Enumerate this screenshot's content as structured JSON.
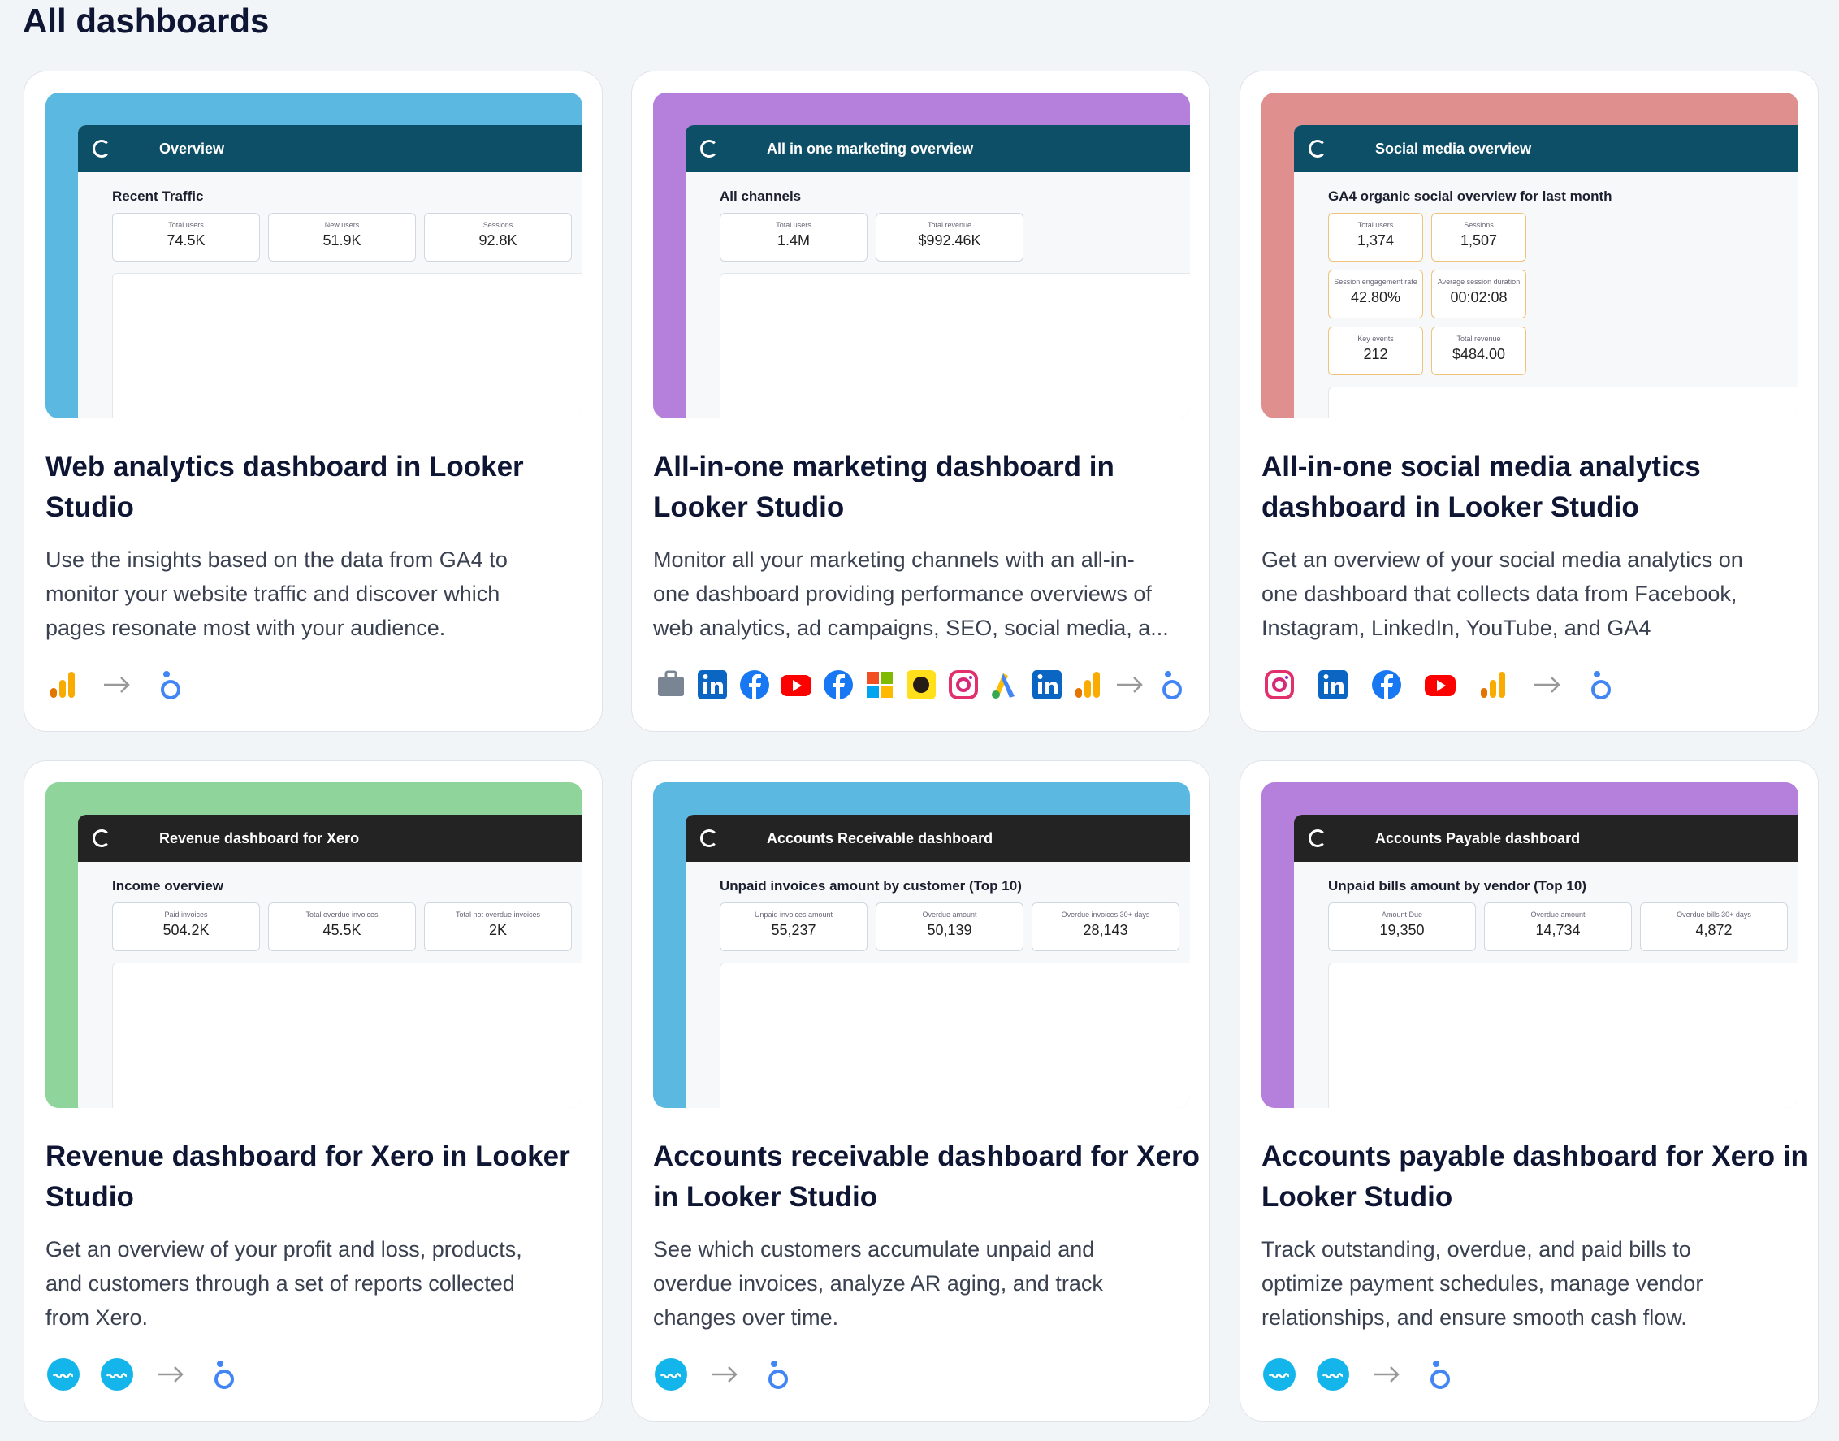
{
  "header": {
    "title": "All dashboards"
  },
  "cards": [
    {
      "title": "Web analytics dashboard in Looker Studio",
      "description": [
        "Use the insights based on the data from GA4 to",
        "monitor your website traffic and discover which",
        "pages resonate most with your audience."
      ],
      "preview": {
        "title": "Overview",
        "heading": "Recent Traffic",
        "kpis": [
          {
            "label": "Total users",
            "value": "74.5K"
          },
          {
            "label": "New users",
            "value": "51.9K"
          },
          {
            "label": "Sessions",
            "value": "92.8K"
          }
        ]
      }
    },
    {
      "title": "All-in-one marketing dashboard in Looker Studio",
      "description": [
        "Monitor all your marketing channels with an all-in-",
        "one dashboard providing performance overviews of",
        "web analytics, ad campaigns, SEO, social media, a..."
      ],
      "preview": {
        "title": "All in one marketing overview",
        "heading": "All channels",
        "kpis": [
          {
            "label": "Total users",
            "value": "1.4M"
          },
          {
            "label": "Total revenue",
            "value": "$992.46K"
          }
        ]
      }
    },
    {
      "title": "All-in-one social media analytics dashboard in Looker Studio",
      "description": [
        "Get an overview of your social media analytics on",
        "one dashboard that collects data from Facebook,",
        "Instagram, LinkedIn, YouTube, and GA4"
      ],
      "preview": {
        "title": "Social media overview",
        "heading": "GA4 organic social overview for last month",
        "kpis": [
          {
            "label": "Total users",
            "value": "1,374"
          },
          {
            "label": "Sessions",
            "value": "1,507"
          },
          {
            "label": "Session engagement rate",
            "value": "42.80%"
          },
          {
            "label": "Average session duration",
            "value": "00:02:08"
          },
          {
            "label": "Key events",
            "value": "212"
          },
          {
            "label": "Total revenue",
            "value": "$484.00"
          }
        ]
      }
    },
    {
      "title": "Revenue dashboard for Xero in Looker Studio",
      "description": [
        "Get an overview of your profit and loss, products,",
        "and customers through a set of reports collected",
        "from Xero."
      ],
      "preview": {
        "title": "Revenue dashboard for Xero",
        "heading": "Income overview",
        "kpis": [
          {
            "label": "Paid invoices",
            "value": "504.2K"
          },
          {
            "label": "Total overdue invoices",
            "value": "45.5K"
          },
          {
            "label": "Total not overdue invoices",
            "value": "2K"
          }
        ]
      }
    },
    {
      "title": "Accounts receivable dashboard for Xero in Looker Studio",
      "description": [
        "See which customers accumulate unpaid and",
        "overdue invoices, analyze AR aging, and track",
        "changes over time."
      ],
      "preview": {
        "title": "Accounts Receivable dashboard",
        "heading": "Unpaid invoices amount by customer (Top 10)",
        "kpis": [
          {
            "label": "Unpaid invoices amount",
            "value": "55,237"
          },
          {
            "label": "Overdue amount",
            "value": "50,139"
          },
          {
            "label": "Overdue invoices 30+ days",
            "value": "28,143"
          }
        ]
      }
    },
    {
      "title": "Accounts payable dashboard for Xero in Looker Studio",
      "description": [
        "Track outstanding, overdue, and paid bills to",
        "optimize payment schedules, manage vendor",
        "relationships, and ensure smooth cash flow."
      ],
      "preview": {
        "title": "Accounts Payable dashboard",
        "heading": "Unpaid bills amount by vendor (Top 10)",
        "kpis": [
          {
            "label": "Amount Due",
            "value": "19,350"
          },
          {
            "label": "Overdue amount",
            "value": "14,734"
          },
          {
            "label": "Overdue bills 30+ days",
            "value": "4,872"
          }
        ]
      }
    }
  ]
}
